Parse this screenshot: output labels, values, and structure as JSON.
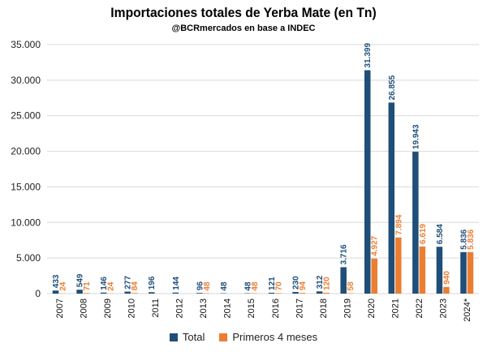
{
  "colors": {
    "total": "#1F4E79",
    "partial": "#ED7D31"
  },
  "chart_data": {
    "type": "bar",
    "title": "Importaciones totales de Yerba Mate (en Tn)",
    "subtitle": "@BCRmercados en base a INDEC",
    "categories": [
      "2007",
      "2008",
      "2009",
      "2010",
      "2011",
      "2012",
      "2013",
      "2014",
      "2015",
      "2016",
      "2017",
      "2018",
      "2019",
      "2020",
      "2021",
      "2022",
      "2023",
      "2024*"
    ],
    "series": [
      {
        "name": "Total",
        "values": [
          433,
          549,
          146,
          277,
          196,
          144,
          96,
          48,
          48,
          121,
          230,
          312,
          3716,
          31399,
          26855,
          19943,
          6584,
          5836
        ],
        "labels": [
          "433",
          "549",
          "146",
          "277",
          "196",
          "144",
          "96",
          "48",
          "48",
          "121",
          "230",
          "312",
          "3.716",
          "31.399",
          "26.855",
          "19.943",
          "6.584",
          "5.836"
        ]
      },
      {
        "name": "Primeros 4 meses",
        "values": [
          24,
          71,
          24,
          84,
          null,
          null,
          48,
          null,
          48,
          70,
          94,
          120,
          58,
          4927,
          7894,
          6619,
          940,
          5836
        ],
        "labels": [
          "24",
          "71",
          "24",
          "84",
          "",
          "",
          "48",
          "",
          "48",
          "70",
          "94",
          "120",
          "58",
          "4.927",
          "7.894",
          "6.619",
          "940",
          "5.836"
        ]
      }
    ],
    "ylim": [
      0,
      35000
    ],
    "yticks": [
      0,
      5000,
      10000,
      15000,
      20000,
      25000,
      30000,
      35000
    ],
    "ytick_labels": [
      "0",
      "5.000",
      "10.000",
      "15.000",
      "20.000",
      "25.000",
      "30.000",
      "35.000"
    ],
    "grid": true,
    "legend_position": "bottom"
  }
}
